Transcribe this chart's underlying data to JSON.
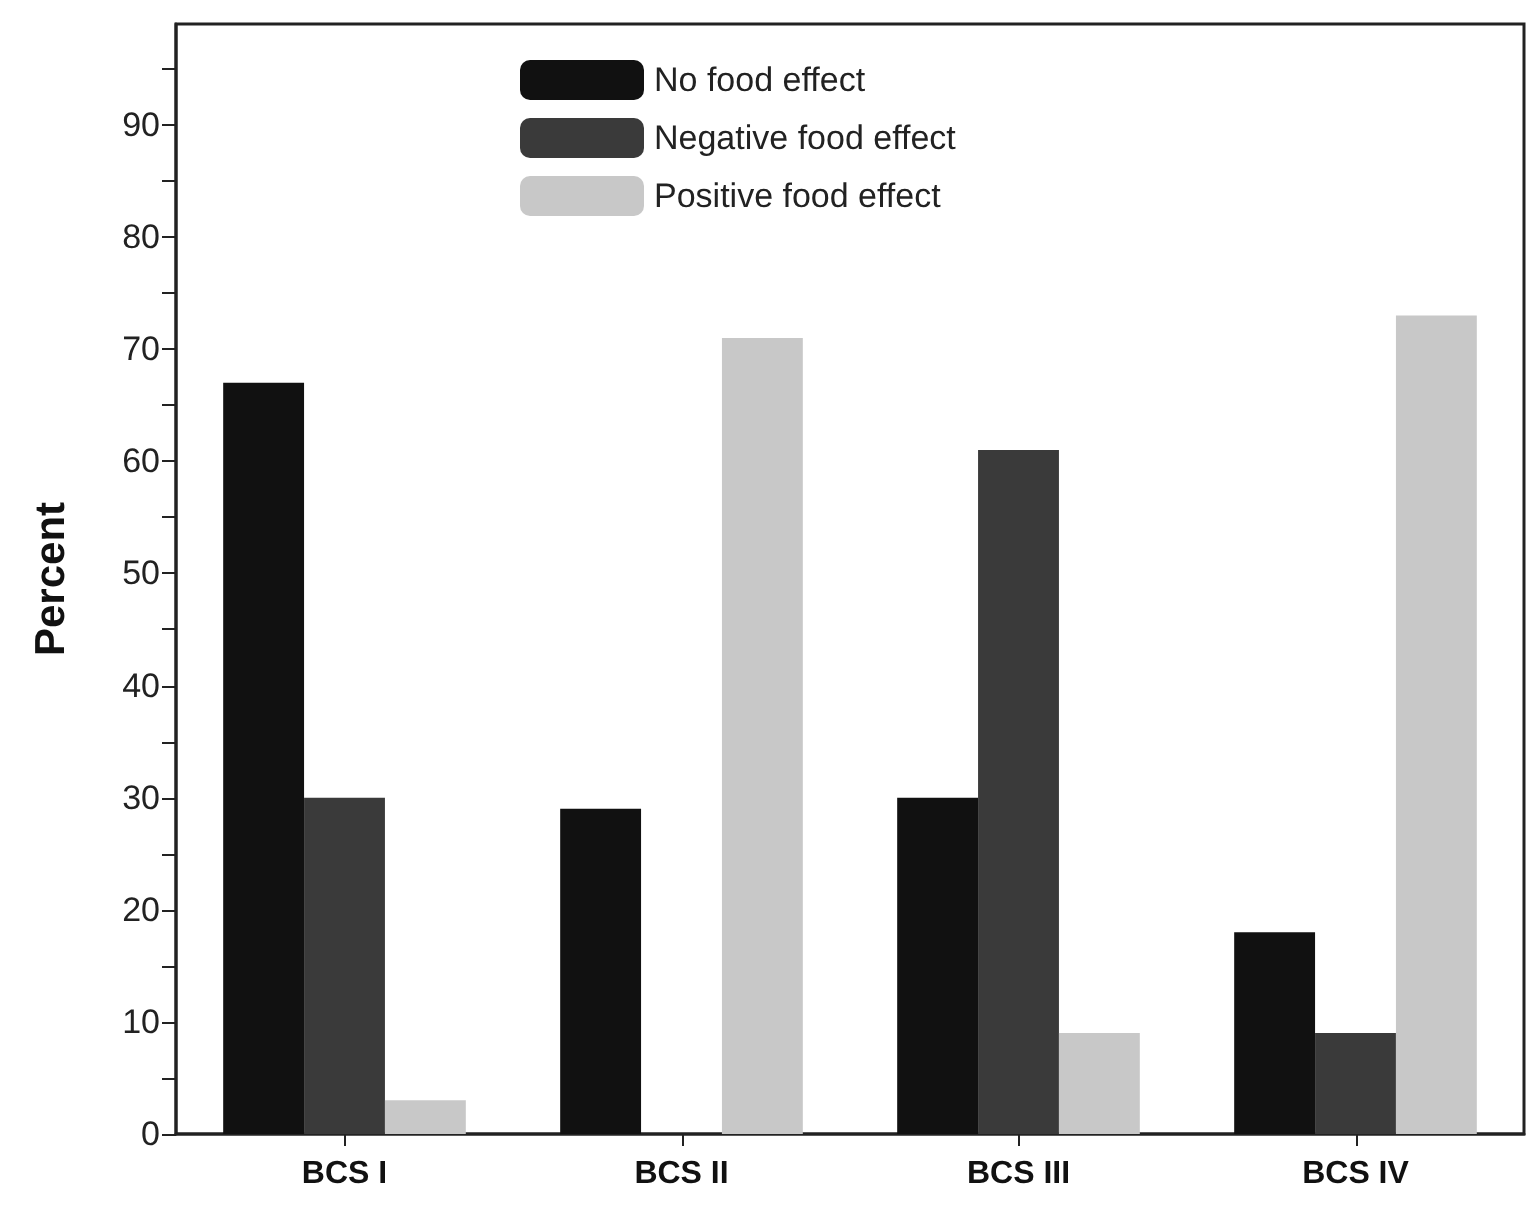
{
  "chart_data": {
    "type": "bar",
    "ylabel": "Percent",
    "categories": [
      "BCS I",
      "BCS II",
      "BCS III",
      "BCS IV"
    ],
    "series": [
      {
        "name": "No food effect",
        "color": "#111111",
        "values": [
          67,
          29,
          30,
          18
        ]
      },
      {
        "name": "Negative food effect",
        "color": "#3a3a3a",
        "values": [
          30,
          0,
          61,
          9
        ]
      },
      {
        "name": "Positive food effect",
        "color": "#c8c8c8",
        "values": [
          3,
          71,
          9,
          73
        ]
      }
    ],
    "ylim": [
      0,
      99
    ],
    "yticks": [
      0,
      {
        "value": 5,
        "label": null
      },
      10,
      {
        "value": 15,
        "label": null
      },
      20,
      {
        "value": 25,
        "label": null
      },
      30,
      {
        "value": 35,
        "label": null
      },
      40,
      {
        "value": 45,
        "label": null
      },
      50,
      {
        "value": 55,
        "label": null
      },
      60,
      {
        "value": 65,
        "label": null
      },
      70,
      {
        "value": 75,
        "label": null
      },
      80,
      {
        "value": 85,
        "label": null
      },
      90,
      {
        "value": 95,
        "label": null
      }
    ],
    "grid": false,
    "legend": "top"
  }
}
